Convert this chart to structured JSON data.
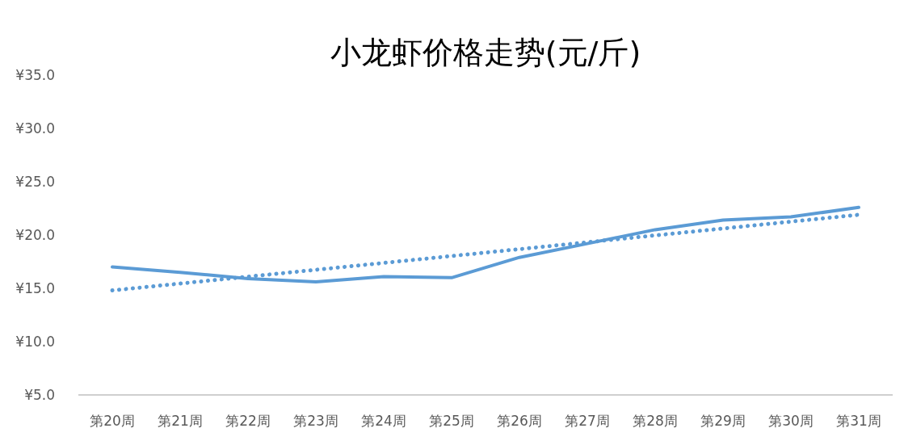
{
  "chart_data": {
    "type": "line",
    "title": "小龙虾价格走势(元/斤)",
    "categories": [
      "第20周",
      "第21周",
      "第22周",
      "第23周",
      "第24周",
      "第25周",
      "第26周",
      "第27周",
      "第28周",
      "第29周",
      "第30周",
      "第31周"
    ],
    "series": [
      {
        "color": "#5b9bd5",
        "values": [
          17.0,
          16.5,
          15.9,
          15.6,
          16.1,
          16.0,
          17.9,
          19.2,
          20.5,
          21.4,
          21.7,
          22.6
        ],
        "line_style": "solid"
      },
      {
        "color": "#5b9bd5",
        "x": [
          "第20周",
          "第31周"
        ],
        "values": [
          14.8,
          21.9
        ],
        "line_style": "dotted"
      }
    ],
    "ylim": [
      5,
      35
    ],
    "yticks": [
      {
        "value": 5,
        "label": "¥5.0"
      },
      {
        "value": 10,
        "label": "¥10.0"
      },
      {
        "value": 15,
        "label": "¥15.0"
      },
      {
        "value": 20,
        "label": "¥20.0"
      },
      {
        "value": 25,
        "label": "¥25.0"
      },
      {
        "value": 30,
        "label": "¥30.0"
      },
      {
        "value": 35,
        "label": "¥35.0"
      }
    ],
    "grid": false,
    "marker": "none"
  }
}
